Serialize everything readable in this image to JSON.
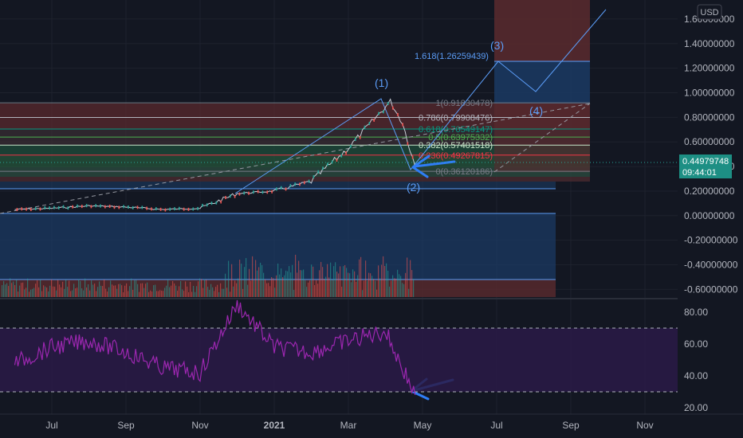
{
  "currency_label": "USD",
  "last_price": "0.44979748",
  "countdown": "09:44:01",
  "colors": {
    "background": "#131722",
    "grid": "#1e222d",
    "price_line": "#c9ccd6",
    "up": "#26a69a",
    "down": "#ef5350",
    "rsi": "#9c27b0",
    "rsi_band": "#2a1a47",
    "wave": "#5b9cf6",
    "tag": "#1d8f84"
  },
  "chart_data": [
    {
      "type": "line",
      "name": "price",
      "y_ticks": [
        "1.60000000",
        "1.40000000",
        "1.20000000",
        "1.00000000",
        "0.80000000",
        "0.60000000",
        "0.40000000",
        "0.20000000",
        "0.00000000",
        "-0.20000000",
        "-0.40000000",
        "-0.60000000"
      ],
      "y_tick_values": [
        1.6,
        1.4,
        1.2,
        1.0,
        0.8,
        0.6,
        0.4,
        0.2,
        0.0,
        -0.2,
        -0.4,
        -0.6
      ],
      "ylim": [
        -0.66,
        1.76
      ],
      "x_ticks": [
        "Jul",
        "Sep",
        "Nov",
        "2021",
        "Mar",
        "May",
        "Jul",
        "Sep",
        "Nov"
      ],
      "x_tick_dates": [
        "2020-07",
        "2020-09",
        "2020-11",
        "2021-01",
        "2021-03",
        "2021-05",
        "2021-07",
        "2021-09",
        "2021-11"
      ],
      "series": [
        {
          "x": [
            "2020-06",
            "2020-07",
            "2020-08",
            "2020-09",
            "2020-10",
            "2020-11",
            "2020-12",
            "2021-01",
            "2021-02",
            "2021-03",
            "2021-04-05",
            "2021-04-15",
            "2021-04-25"
          ],
          "values": [
            0.05,
            0.06,
            0.08,
            0.07,
            0.05,
            0.06,
            0.18,
            0.2,
            0.28,
            0.55,
            0.93,
            0.75,
            0.4
          ]
        }
      ],
      "fib_levels": [
        {
          "label": "1(0.91830478)",
          "ratio": 1,
          "price": 0.91830478,
          "color": "#787b86"
        },
        {
          "label": "0.786(0.79908476)",
          "ratio": 0.786,
          "price": 0.79908476,
          "color": "#b2b5be"
        },
        {
          "label": "0.618(0.70549147)",
          "ratio": 0.618,
          "price": 0.70549147,
          "color": "#089981"
        },
        {
          "label": "0.5(0.63975332)",
          "ratio": 0.5,
          "price": 0.63975332,
          "color": "#4caf50"
        },
        {
          "label": "0.382(0.57401518)",
          "ratio": 0.382,
          "price": 0.57401518,
          "color": "#c8e6c9"
        },
        {
          "label": "0.236(0.49267815)",
          "ratio": 0.236,
          "price": 0.49267815,
          "color": "#f23645"
        },
        {
          "label": "0(0.36120186)",
          "ratio": 0,
          "price": 0.36120186,
          "color": "#787b86"
        }
      ],
      "fib_extension": {
        "label": "1.618(1.26259439)",
        "ratio": 1.618,
        "price": 1.26259439
      },
      "wave_labels": [
        "(1)",
        "(2)",
        "(3)",
        "(4)"
      ]
    },
    {
      "type": "line",
      "name": "RSI",
      "y_ticks": [
        "80.00",
        "60.00",
        "40.00",
        "20.00"
      ],
      "y_tick_values": [
        80,
        60,
        40,
        20
      ],
      "ylim": [
        16,
        90
      ],
      "upper_band": 70,
      "lower_band": 30,
      "series": [
        {
          "x": [
            "2020-06",
            "2020-07",
            "2020-08",
            "2020-09",
            "2020-10",
            "2020-11",
            "2020-12",
            "2021-01",
            "2021-02",
            "2021-03",
            "2021-04",
            "2021-04-25"
          ],
          "values": [
            48,
            58,
            62,
            55,
            45,
            42,
            85,
            58,
            55,
            62,
            68,
            28
          ]
        }
      ]
    }
  ]
}
